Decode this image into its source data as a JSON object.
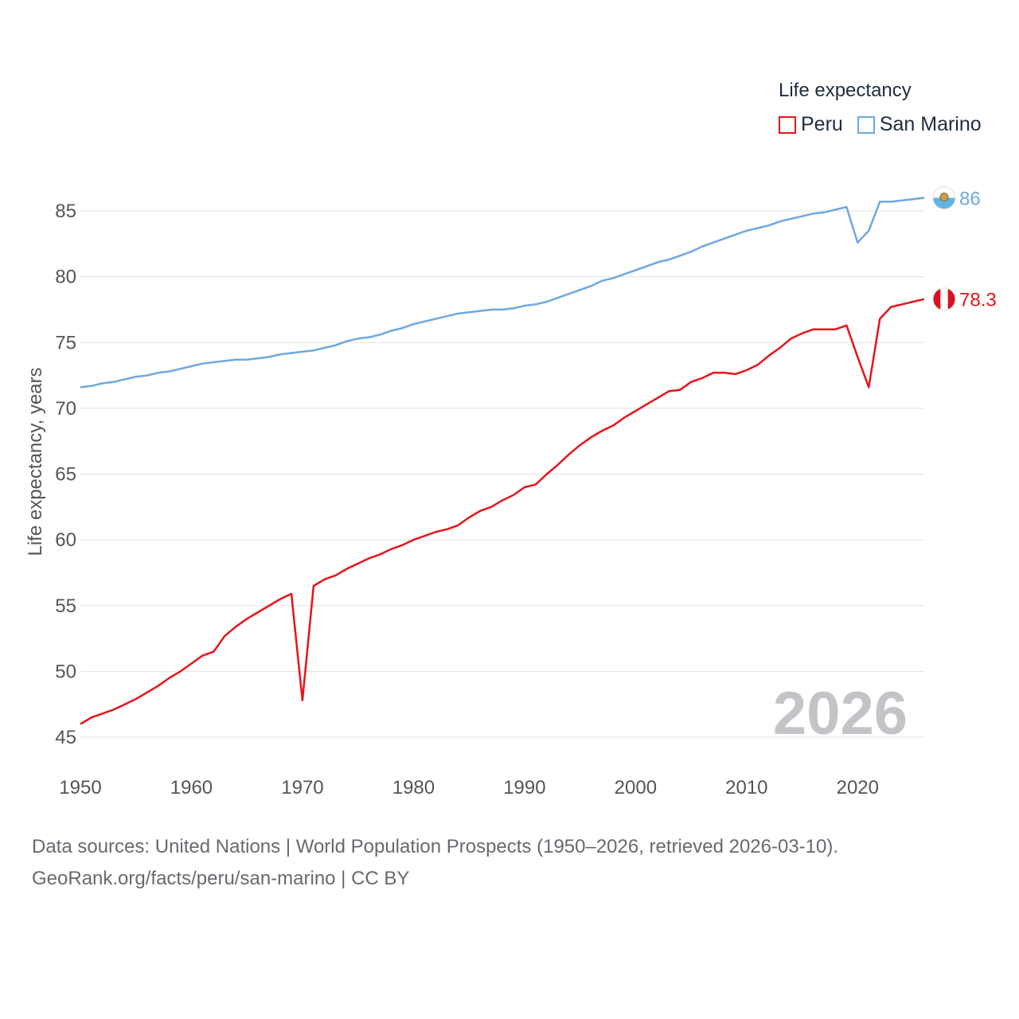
{
  "chart_data": {
    "type": "line",
    "title": "Life expectancy",
    "xlabel": "",
    "ylabel": "Life expectancy, years",
    "xlim": [
      1950,
      2026
    ],
    "ylim": [
      45,
      87
    ],
    "x_ticks": [
      1950,
      1960,
      1970,
      1980,
      1990,
      2000,
      2010,
      2020
    ],
    "y_ticks": [
      45,
      50,
      55,
      60,
      65,
      70,
      75,
      80,
      85
    ],
    "current_year": "2026",
    "series": [
      {
        "name": "Peru",
        "color": "#e8141a",
        "end_label": "78.3",
        "flag": "peru-flag",
        "x": [
          1950,
          1951,
          1952,
          1953,
          1954,
          1955,
          1956,
          1957,
          1958,
          1959,
          1960,
          1961,
          1962,
          1963,
          1964,
          1965,
          1966,
          1967,
          1968,
          1969,
          1970,
          1971,
          1972,
          1973,
          1974,
          1975,
          1976,
          1977,
          1978,
          1979,
          1980,
          1981,
          1982,
          1983,
          1984,
          1985,
          1986,
          1987,
          1988,
          1989,
          1990,
          1991,
          1992,
          1993,
          1994,
          1995,
          1996,
          1997,
          1998,
          1999,
          2000,
          2001,
          2002,
          2003,
          2004,
          2005,
          2006,
          2007,
          2008,
          2009,
          2010,
          2011,
          2012,
          2013,
          2014,
          2015,
          2016,
          2017,
          2018,
          2019,
          2020,
          2021,
          2022,
          2023,
          2024,
          2025,
          2026
        ],
        "values": [
          46.0,
          46.5,
          46.8,
          47.1,
          47.5,
          47.9,
          48.4,
          48.9,
          49.5,
          50.0,
          50.6,
          51.2,
          51.5,
          52.7,
          53.4,
          54.0,
          54.5,
          55.0,
          55.5,
          55.9,
          47.8,
          56.5,
          57.0,
          57.3,
          57.8,
          58.2,
          58.6,
          58.9,
          59.3,
          59.6,
          60.0,
          60.3,
          60.6,
          60.8,
          61.1,
          61.7,
          62.2,
          62.5,
          63.0,
          63.4,
          64.0,
          64.2,
          65.0,
          65.7,
          66.5,
          67.2,
          67.8,
          68.3,
          68.7,
          69.3,
          69.8,
          70.3,
          70.8,
          71.3,
          71.4,
          72.0,
          72.3,
          72.7,
          72.7,
          72.6,
          72.9,
          73.3,
          74.0,
          74.6,
          75.3,
          75.7,
          76.0,
          76.0,
          76.0,
          76.3,
          73.9,
          71.6,
          76.8,
          77.7,
          77.9,
          78.1,
          78.3
        ]
      },
      {
        "name": "San Marino",
        "color": "#6fa8e0",
        "end_label": "86",
        "flag": "san-marino-flag",
        "x": [
          1950,
          1951,
          1952,
          1953,
          1954,
          1955,
          1956,
          1957,
          1958,
          1959,
          1960,
          1961,
          1962,
          1963,
          1964,
          1965,
          1966,
          1967,
          1968,
          1969,
          1970,
          1971,
          1972,
          1973,
          1974,
          1975,
          1976,
          1977,
          1978,
          1979,
          1980,
          1981,
          1982,
          1983,
          1984,
          1985,
          1986,
          1987,
          1988,
          1989,
          1990,
          1991,
          1992,
          1993,
          1994,
          1995,
          1996,
          1997,
          1998,
          1999,
          2000,
          2001,
          2002,
          2003,
          2004,
          2005,
          2006,
          2007,
          2008,
          2009,
          2010,
          2011,
          2012,
          2013,
          2014,
          2015,
          2016,
          2017,
          2018,
          2019,
          2020,
          2021,
          2022,
          2023,
          2024,
          2025,
          2026
        ],
        "values": [
          71.6,
          71.7,
          71.9,
          72.0,
          72.2,
          72.4,
          72.5,
          72.7,
          72.8,
          73.0,
          73.2,
          73.4,
          73.5,
          73.6,
          73.7,
          73.7,
          73.8,
          73.9,
          74.1,
          74.2,
          74.3,
          74.4,
          74.6,
          74.8,
          75.1,
          75.3,
          75.4,
          75.6,
          75.9,
          76.1,
          76.4,
          76.6,
          76.8,
          77.0,
          77.2,
          77.3,
          77.4,
          77.5,
          77.5,
          77.6,
          77.8,
          77.9,
          78.1,
          78.4,
          78.7,
          79.0,
          79.3,
          79.7,
          79.9,
          80.2,
          80.5,
          80.8,
          81.1,
          81.3,
          81.6,
          81.9,
          82.3,
          82.6,
          82.9,
          83.2,
          83.5,
          83.7,
          83.9,
          84.2,
          84.4,
          84.6,
          84.8,
          84.9,
          85.1,
          85.3,
          82.6,
          83.5,
          85.7,
          85.7,
          85.8,
          85.9,
          86.0
        ]
      }
    ],
    "legend": {
      "title": "Life expectancy",
      "placement": "top-right"
    }
  },
  "footer": {
    "sources": "Data sources: United Nations | World Population Prospects (1950–2026, retrieved 2026-03-10).",
    "credit": "GeoRank.org/facts/peru/san-marino | CC BY"
  }
}
